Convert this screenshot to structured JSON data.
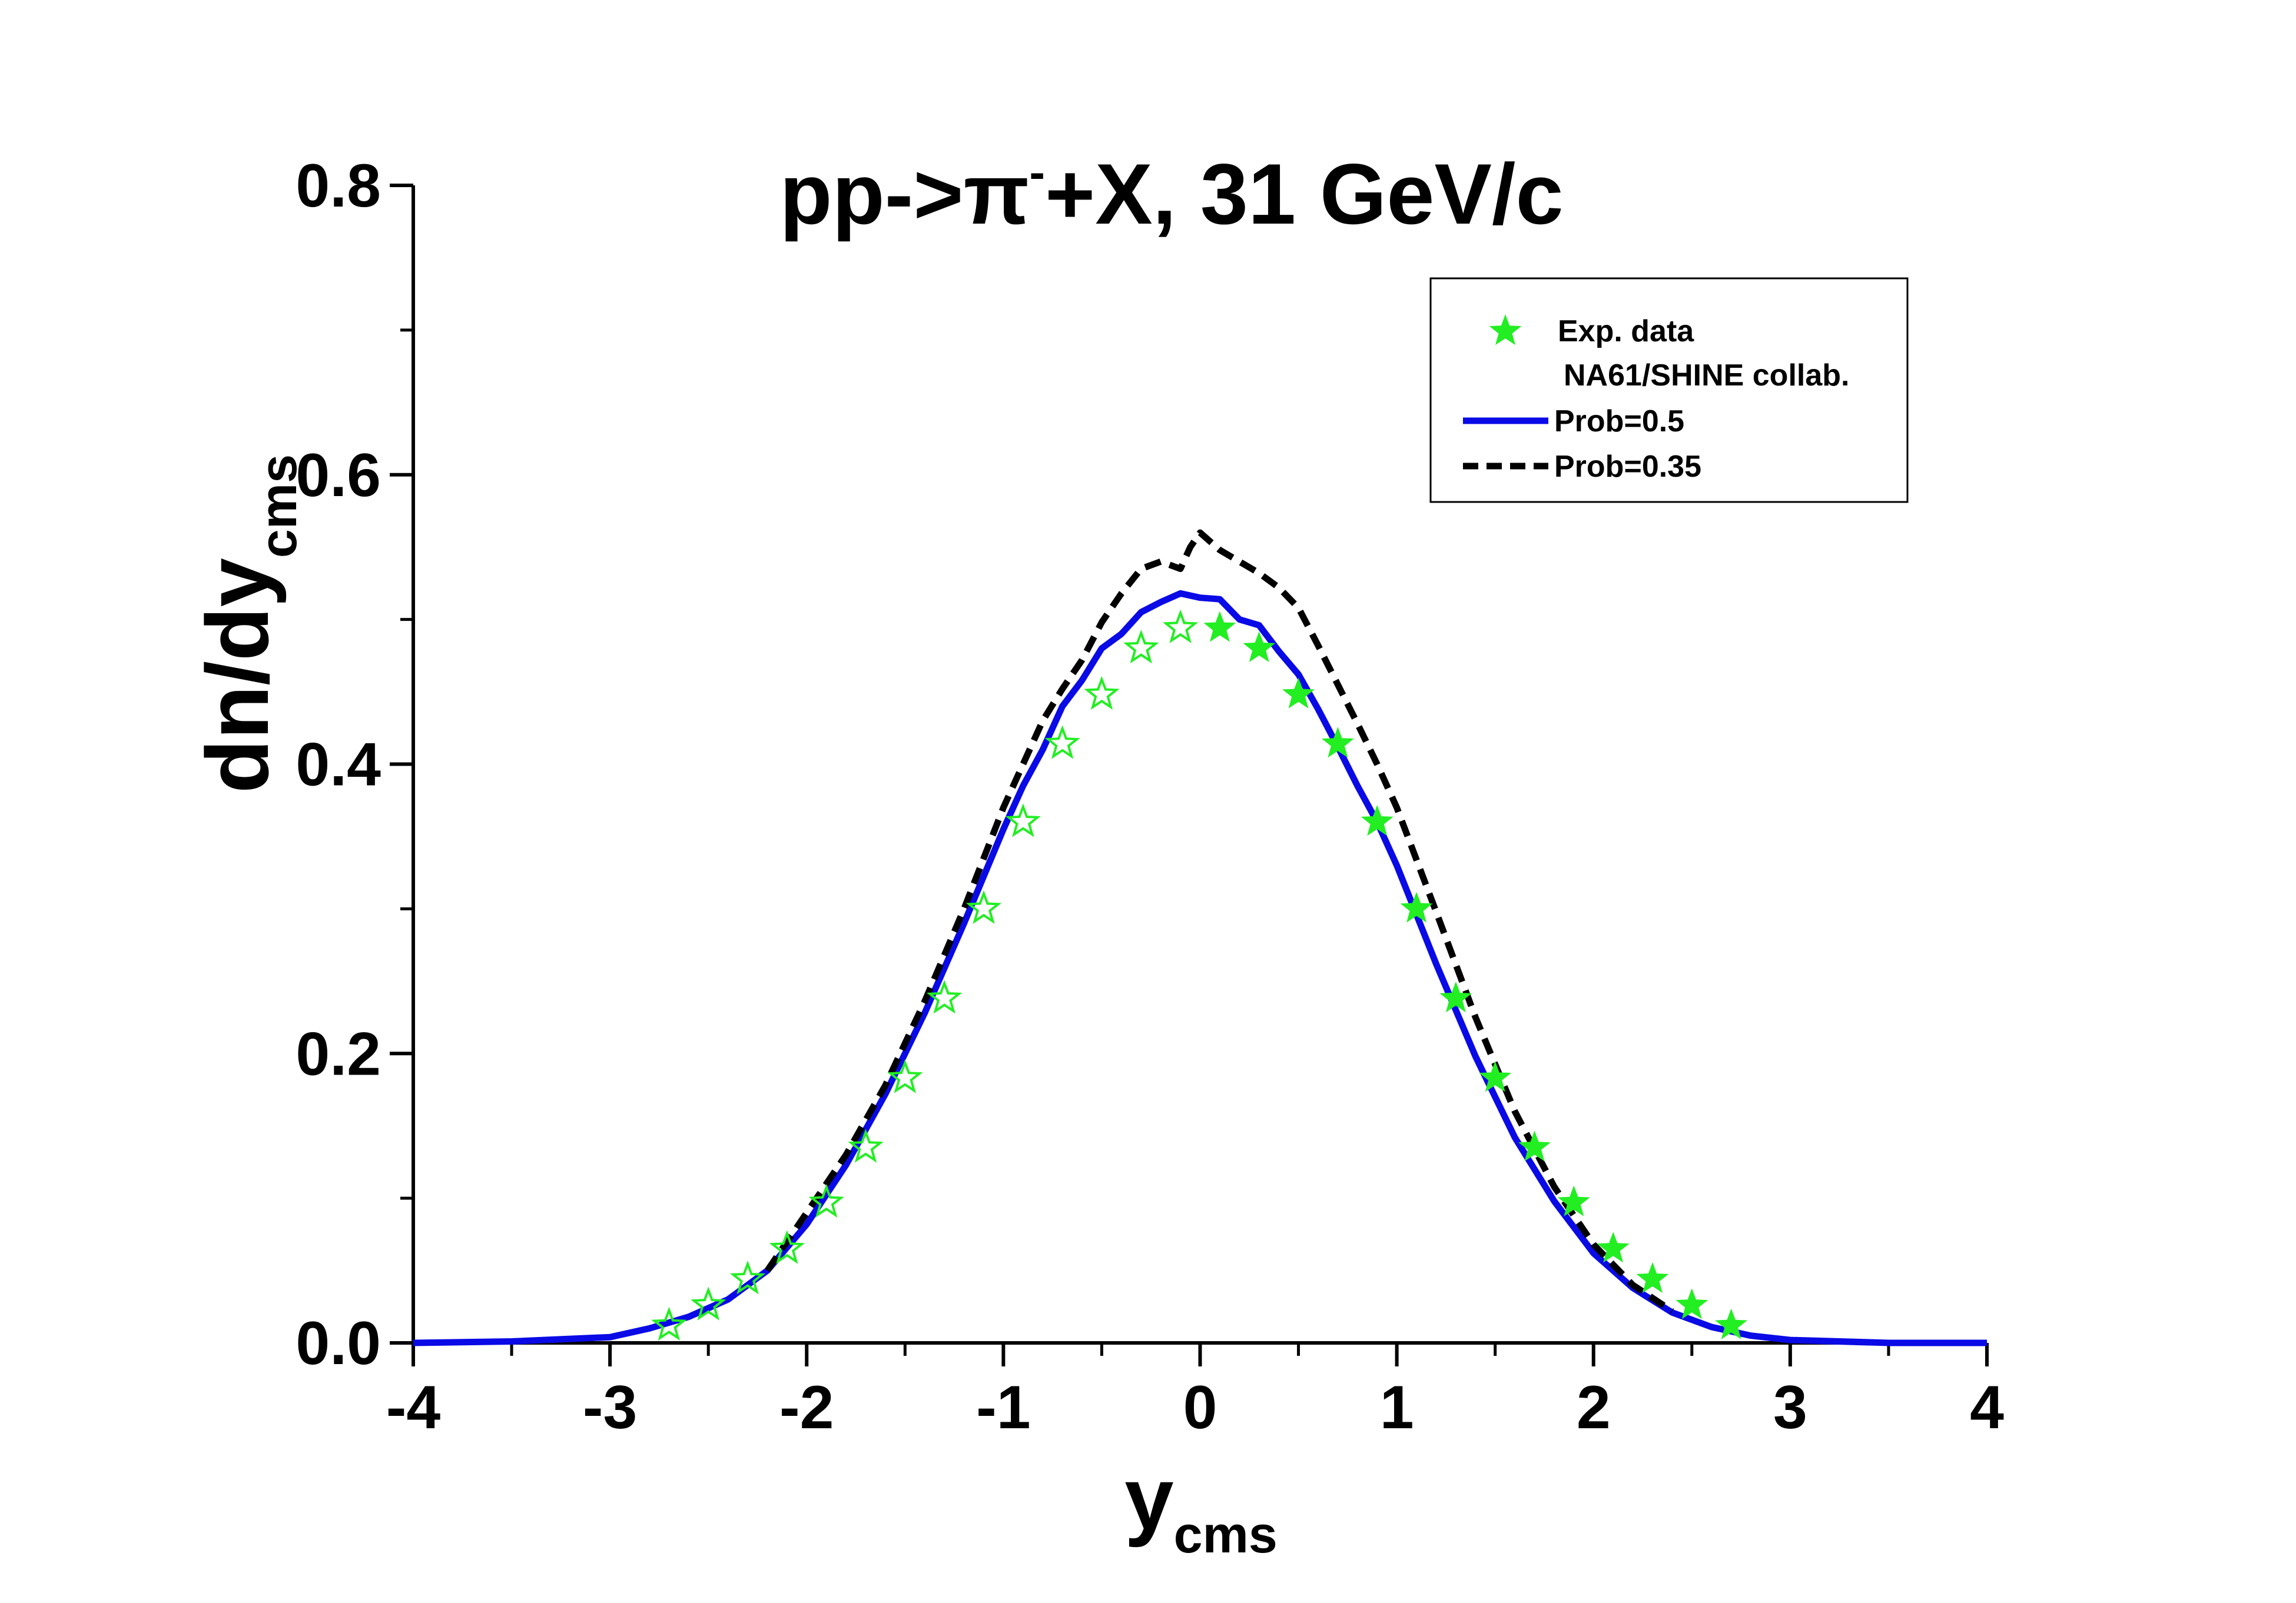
{
  "chart_data": {
    "type": "line",
    "title": {
      "prefix": "pp->π",
      "superscript": "-",
      "suffix": "+X, 31 GeV/c"
    },
    "xlabel": {
      "main": "y",
      "sub": "cms"
    },
    "ylabel": {
      "main": "dn/dy",
      "sub": "cms"
    },
    "xlim": [
      -4,
      4
    ],
    "ylim": [
      0.0,
      0.8
    ],
    "x_ticks": [
      -4,
      -3,
      -2,
      -1,
      0,
      1,
      2,
      3,
      4
    ],
    "x_tick_labels": [
      "-4",
      "-3",
      "-2",
      "-1",
      "0",
      "1",
      "2",
      "3",
      "4"
    ],
    "y_ticks": [
      0.0,
      0.2,
      0.4,
      0.6,
      0.8
    ],
    "y_tick_labels": [
      "0.0",
      "0.2",
      "0.4",
      "0.6",
      "0.8"
    ],
    "grid": false,
    "legend_position": "top-right",
    "legend": {
      "data_line1": "Exp. data",
      "data_line2": "NA61/SHINE collab.",
      "series1": "Prob=0.5",
      "series2": "Prob=0.35"
    },
    "exp_data": {
      "name": "Exp. data NA61/SHINE collab.",
      "color": "#22ee22",
      "marker": "star",
      "points": [
        {
          "x": -2.7,
          "y": 0.012,
          "filled": false
        },
        {
          "x": -2.5,
          "y": 0.026,
          "filled": false
        },
        {
          "x": -2.3,
          "y": 0.044,
          "filled": false
        },
        {
          "x": -2.1,
          "y": 0.065,
          "filled": false
        },
        {
          "x": -1.9,
          "y": 0.097,
          "filled": false
        },
        {
          "x": -1.7,
          "y": 0.135,
          "filled": false
        },
        {
          "x": -1.5,
          "y": 0.183,
          "filled": false
        },
        {
          "x": -1.3,
          "y": 0.238,
          "filled": false
        },
        {
          "x": -1.1,
          "y": 0.3,
          "filled": false
        },
        {
          "x": -0.9,
          "y": 0.36,
          "filled": false
        },
        {
          "x": -0.7,
          "y": 0.414,
          "filled": false
        },
        {
          "x": -0.5,
          "y": 0.448,
          "filled": false
        },
        {
          "x": -0.3,
          "y": 0.48,
          "filled": false
        },
        {
          "x": -0.1,
          "y": 0.494,
          "filled": false
        },
        {
          "x": 0.1,
          "y": 0.494,
          "filled": true
        },
        {
          "x": 0.3,
          "y": 0.48,
          "filled": true
        },
        {
          "x": 0.5,
          "y": 0.448,
          "filled": true
        },
        {
          "x": 0.7,
          "y": 0.414,
          "filled": true
        },
        {
          "x": 0.9,
          "y": 0.36,
          "filled": true
        },
        {
          "x": 1.1,
          "y": 0.3,
          "filled": true
        },
        {
          "x": 1.3,
          "y": 0.238,
          "filled": true
        },
        {
          "x": 1.5,
          "y": 0.183,
          "filled": true
        },
        {
          "x": 1.7,
          "y": 0.135,
          "filled": true
        },
        {
          "x": 1.9,
          "y": 0.097,
          "filled": true
        },
        {
          "x": 2.1,
          "y": 0.065,
          "filled": true
        },
        {
          "x": 2.3,
          "y": 0.044,
          "filled": true
        },
        {
          "x": 2.5,
          "y": 0.026,
          "filled": true
        },
        {
          "x": 2.7,
          "y": 0.012,
          "filled": true
        }
      ]
    },
    "series": [
      {
        "name": "Prob=0.5",
        "color": "#0a0ae6",
        "style": "solid",
        "x": [
          -4.0,
          -3.5,
          -3.0,
          -2.8,
          -2.6,
          -2.4,
          -2.2,
          -2.0,
          -1.8,
          -1.6,
          -1.4,
          -1.2,
          -1.0,
          -0.9,
          -0.8,
          -0.7,
          -0.6,
          -0.5,
          -0.4,
          -0.3,
          -0.2,
          -0.1,
          0.0,
          0.1,
          0.2,
          0.3,
          0.4,
          0.5,
          0.6,
          0.7,
          0.8,
          0.9,
          1.0,
          1.2,
          1.4,
          1.6,
          1.8,
          2.0,
          2.2,
          2.4,
          2.6,
          2.8,
          3.0,
          3.5,
          4.0
        ],
        "y": [
          0.0,
          0.001,
          0.004,
          0.01,
          0.018,
          0.03,
          0.05,
          0.082,
          0.123,
          0.172,
          0.228,
          0.29,
          0.355,
          0.385,
          0.41,
          0.44,
          0.458,
          0.48,
          0.49,
          0.505,
          0.512,
          0.518,
          0.515,
          0.514,
          0.5,
          0.496,
          0.478,
          0.462,
          0.438,
          0.412,
          0.385,
          0.36,
          0.33,
          0.262,
          0.198,
          0.142,
          0.098,
          0.062,
          0.038,
          0.021,
          0.011,
          0.005,
          0.002,
          0.0,
          0.0
        ]
      },
      {
        "name": "Prob=0.35",
        "color": "#000000",
        "style": "dashed",
        "x": [
          -2.2,
          -2.0,
          -1.8,
          -1.6,
          -1.4,
          -1.2,
          -1.0,
          -0.8,
          -0.7,
          -0.6,
          -0.5,
          -0.4,
          -0.3,
          -0.2,
          -0.1,
          -0.05,
          0.0,
          0.1,
          0.2,
          0.3,
          0.4,
          0.5,
          0.6,
          0.7,
          0.8,
          0.9,
          1.0,
          1.2,
          1.4,
          1.6,
          1.8,
          2.0,
          2.2,
          2.4
        ],
        "y": [
          0.05,
          0.09,
          0.13,
          0.178,
          0.236,
          0.3,
          0.37,
          0.43,
          0.452,
          0.472,
          0.498,
          0.518,
          0.535,
          0.54,
          0.535,
          0.55,
          0.56,
          0.548,
          0.54,
          0.532,
          0.522,
          0.508,
          0.482,
          0.455,
          0.428,
          0.4,
          0.37,
          0.298,
          0.225,
          0.16,
          0.108,
          0.068,
          0.04,
          0.022
        ]
      }
    ]
  }
}
